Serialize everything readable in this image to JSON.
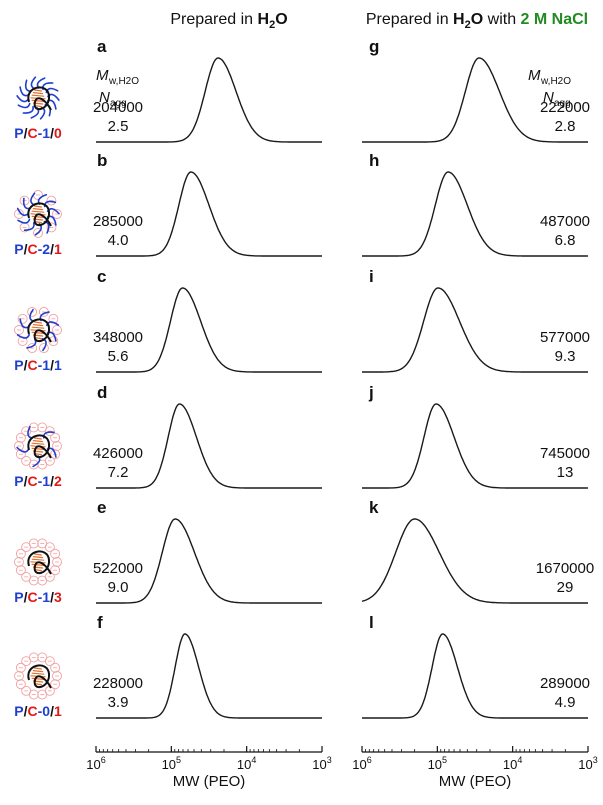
{
  "colors": {
    "curve": "#1a1a1a",
    "P": "#1f3fd0",
    "C": "#e01818",
    "ratio_blue": "#1f3fd0",
    "ratio_red": "#e01818",
    "nacl": "#228b22",
    "corona_chain": "#1f3fd0",
    "core_chain": "#e07030",
    "backbone": "#111111",
    "charge_circle": "#f2a0a0"
  },
  "titles": {
    "left_prefix": "Prepared in ",
    "left_h2o": "H",
    "left_h2o_sub": "2",
    "left_h2o_o": "O",
    "right_prefix": "Prepared in ",
    "right_h2o": "H",
    "right_h2o_sub": "2",
    "right_h2o_o": "O",
    "right_with": " with ",
    "right_nacl": "2 M NaCl"
  },
  "column_header": {
    "mw_main": "M",
    "mw_sub": "w,H2O",
    "nagg_main": "N",
    "nagg_sub": "agg"
  },
  "sample_labels": [
    {
      "P": "P",
      "sep1": "/",
      "C": "C",
      "mid": "-1",
      "sep2": "/",
      "ratio": "0",
      "ratio_color": "red",
      "corona": "full"
    },
    {
      "P": "P",
      "sep1": "/",
      "C": "C",
      "mid": "-2",
      "sep2": "/",
      "ratio": "1",
      "ratio_color": "red",
      "corona": "mostly"
    },
    {
      "P": "P",
      "sep1": "/",
      "C": "C",
      "mid": "-1",
      "sep2": "/",
      "ratio": "1",
      "ratio_color": "blue",
      "corona": "half"
    },
    {
      "P": "P",
      "sep1": "/",
      "C": "C",
      "mid": "-1",
      "sep2": "/",
      "ratio": "2",
      "ratio_color": "red",
      "corona": "few"
    },
    {
      "P": "P",
      "sep1": "/",
      "C": "C",
      "mid": "-1",
      "sep2": "/",
      "ratio": "3",
      "ratio_color": "red",
      "corona": "none"
    },
    {
      "P": "P",
      "sep1": "/",
      "C": "C",
      "mid": "-0",
      "sep2": "/",
      "ratio": "1",
      "ratio_color": "red",
      "corona": "none"
    }
  ],
  "x_axis": {
    "label": "MW (PEO)",
    "ticks": [
      {
        "base": "10",
        "exp": "6"
      },
      {
        "base": "10",
        "exp": "5"
      },
      {
        "base": "10",
        "exp": "4"
      },
      {
        "base": "10",
        "exp": "3"
      }
    ]
  },
  "chart_data": [
    {
      "type": "line",
      "title": "Prepared in H2O",
      "xlabel": "MW (PEO)",
      "xscale": "log",
      "xaxis_direction": "decreasing",
      "xlim": [
        1000000,
        1000
      ],
      "series": [
        {
          "panel": "a",
          "Mw": "204000",
          "Nagg": "2.5",
          "peak_mw": 24000,
          "width_decades": 0.17,
          "skew": 1.4
        },
        {
          "panel": "b",
          "Mw": "285000",
          "Nagg": "4.0",
          "peak_mw": 55000,
          "width_decades": 0.16,
          "skew": 1.5
        },
        {
          "panel": "c",
          "Mw": "348000",
          "Nagg": "5.6",
          "peak_mw": 71000,
          "width_decades": 0.16,
          "skew": 1.5
        },
        {
          "panel": "d",
          "Mw": "426000",
          "Nagg": "7.2",
          "peak_mw": 78000,
          "width_decades": 0.15,
          "skew": 1.5
        },
        {
          "panel": "e",
          "Mw": "522000",
          "Nagg": "9.0",
          "peak_mw": 89000,
          "width_decades": 0.17,
          "skew": 1.5
        },
        {
          "panel": "f",
          "Mw": "228000",
          "Nagg": "3.9",
          "peak_mw": 66000,
          "width_decades": 0.13,
          "skew": 1.4
        }
      ]
    },
    {
      "type": "line",
      "title": "Prepared in H2O with 2 M NaCl",
      "xlabel": "MW (PEO)",
      "xscale": "log",
      "xaxis_direction": "decreasing",
      "xlim": [
        1000000,
        1000
      ],
      "series": [
        {
          "panel": "g",
          "Mw": "222000",
          "Nagg": "2.8",
          "peak_mw": 28000,
          "width_decades": 0.18,
          "skew": 1.5
        },
        {
          "panel": "h",
          "Mw": "487000",
          "Nagg": "6.8",
          "peak_mw": 72000,
          "width_decades": 0.17,
          "skew": 1.5
        },
        {
          "panel": "i",
          "Mw": "577000",
          "Nagg": "9.3",
          "peak_mw": 98000,
          "width_decades": 0.19,
          "skew": 1.5
        },
        {
          "panel": "j",
          "Mw": "745000",
          "Nagg": "13",
          "peak_mw": 104000,
          "width_decades": 0.16,
          "skew": 1.5
        },
        {
          "panel": "k",
          "Mw": "1670000",
          "Nagg": "29",
          "peak_mw": 200000,
          "width_decades": 0.25,
          "skew": 1.3
        },
        {
          "panel": "l",
          "Mw": "289000",
          "Nagg": "4.9",
          "peak_mw": 85000,
          "width_decades": 0.14,
          "skew": 1.4
        }
      ]
    }
  ]
}
